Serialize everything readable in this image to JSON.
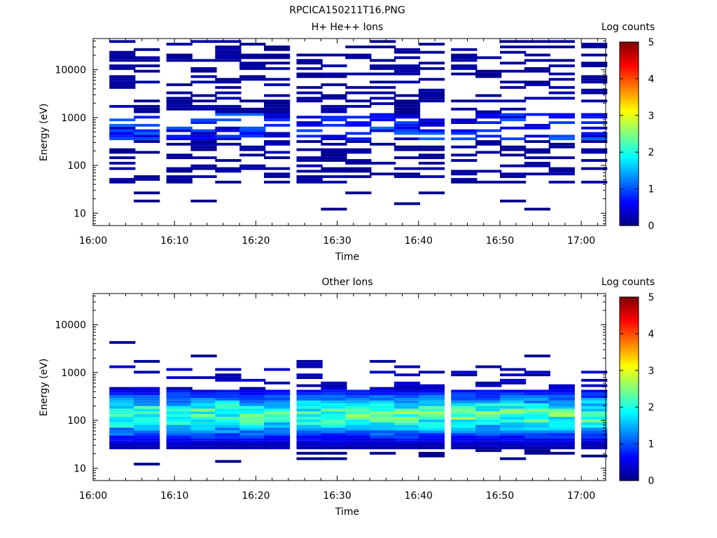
{
  "figure": {
    "title": "RPCICA150211T16.PNG"
  },
  "chart_data": [
    {
      "type": "heatmap",
      "title": "H+ He++ Ions",
      "xlabel": "Time",
      "ylabel": "Energy (eV)",
      "x_ticks": [
        "16:00",
        "16:10",
        "16:20",
        "16:30",
        "16:40",
        "16:50",
        "17:00"
      ],
      "y_ticks": [
        "10",
        "100",
        "1000",
        "10000"
      ],
      "y_scale": "log",
      "xlim": [
        "16:00",
        "17:03"
      ],
      "ylim": [
        5.5,
        45000
      ],
      "colorbar": {
        "label": "Log counts",
        "ticks": [
          "0",
          "1",
          "2",
          "3",
          "4",
          "5"
        ],
        "range": [
          0,
          5
        ],
        "colormap": "jet"
      },
      "time_bins_start": [
        "16:02",
        "16:05",
        "16:09",
        "16:12",
        "16:15",
        "16:18",
        "16:21",
        "16:25",
        "16:28",
        "16:31",
        "16:34",
        "16:37",
        "16:40",
        "16:44",
        "16:47",
        "16:50",
        "16:53",
        "16:56",
        "17:00"
      ],
      "bin_width_min": 3.2
    },
    {
      "type": "heatmap",
      "title": "Other Ions",
      "xlabel": "Time",
      "ylabel": "Energy (eV)",
      "x_ticks": [
        "16:00",
        "16:10",
        "16:20",
        "16:30",
        "16:40",
        "16:50",
        "17:00"
      ],
      "y_ticks": [
        "10",
        "100",
        "1000",
        "10000"
      ],
      "y_scale": "log",
      "xlim": [
        "16:00",
        "17:03"
      ],
      "ylim": [
        5.5,
        45000
      ],
      "colorbar": {
        "label": "Log counts",
        "ticks": [
          "0",
          "1",
          "2",
          "3",
          "4",
          "5"
        ],
        "range": [
          0,
          5
        ],
        "colormap": "jet"
      },
      "time_bins_start": [
        "16:02",
        "16:05",
        "16:09",
        "16:12",
        "16:15",
        "16:18",
        "16:21",
        "16:25",
        "16:28",
        "16:31",
        "16:34",
        "16:37",
        "16:40",
        "16:44",
        "16:47",
        "16:50",
        "16:53",
        "16:56",
        "17:00"
      ],
      "bin_width_min": 3.2,
      "core_energy_range_eV": [
        22,
        400
      ],
      "core_peak_energy_eV": 120,
      "core_peak_log_counts": 2.3
    }
  ]
}
